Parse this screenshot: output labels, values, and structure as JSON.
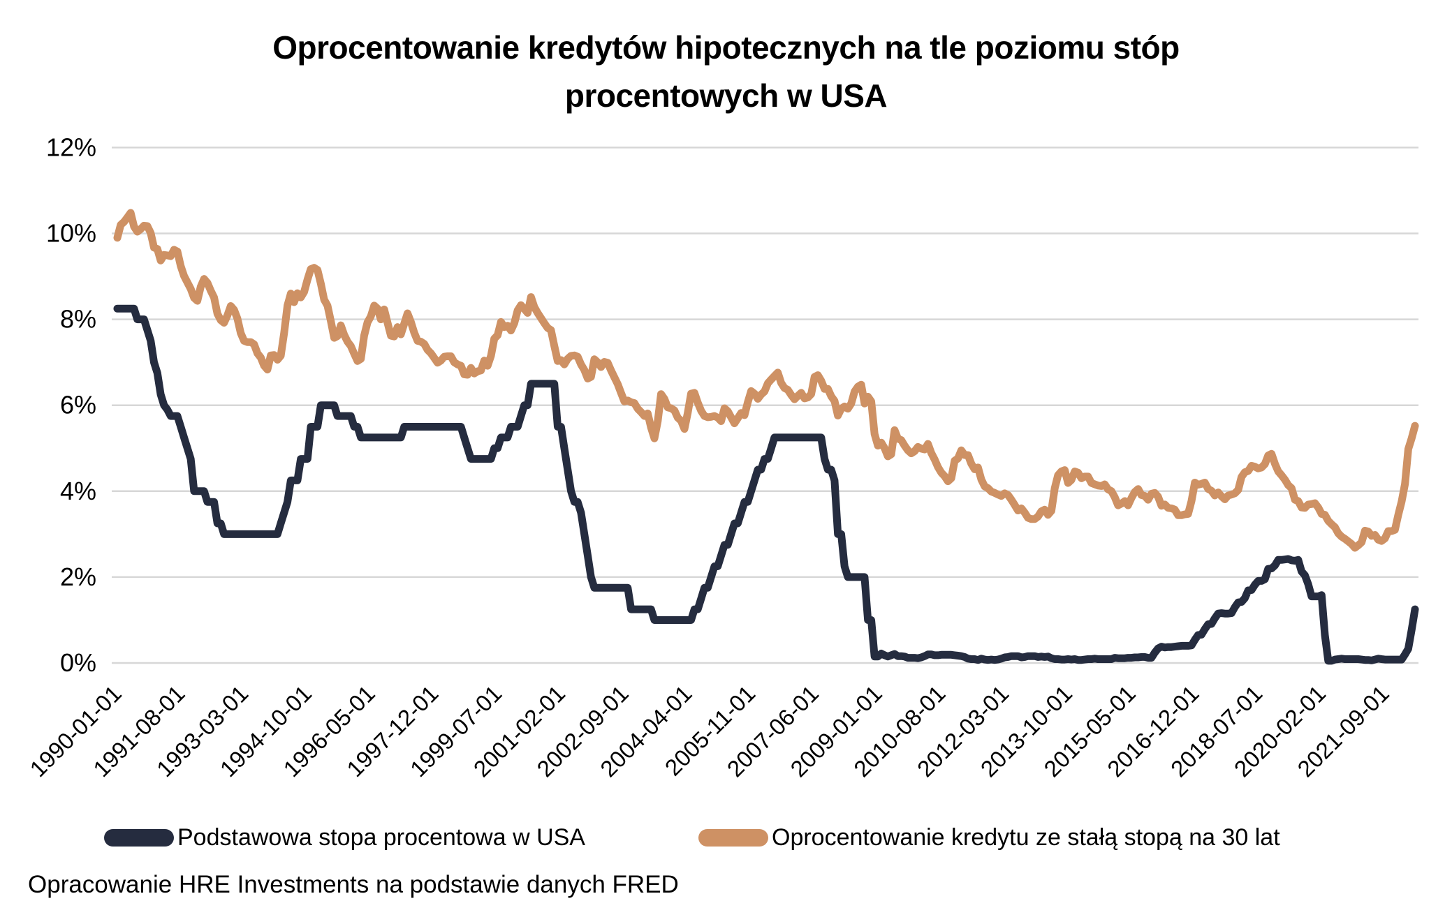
{
  "title": "Oprocentowanie kredytów hipotecznych na tle poziomu stóp procentowych w USA",
  "footer": "Opracowanie HRE Investments na podstawie danych FRED",
  "colors": {
    "base_rate_line": "#252C3F",
    "mortgage_rate_line": "#CE9164",
    "gridline": "#D7D7D7",
    "text": "#000000"
  },
  "chart_data": {
    "type": "line",
    "title": "Oprocentowanie kredytów hipotecznych na tle poziomu stóp procentowych w USA",
    "xlabel": "",
    "ylabel": "",
    "ylim": [
      0,
      12
    ],
    "y_ticks": [
      0,
      2,
      4,
      6,
      8,
      10,
      12
    ],
    "y_tick_suffix": "%",
    "grid": "horizontal",
    "legend_position": "bottom",
    "x_frequency": "monthly",
    "x_start": "1990-01-01",
    "x_end": "2022-06-01",
    "x_tick_interval_months": 19,
    "x_tick_labels": [
      "1990-01-01",
      "1991-08-01",
      "1993-03-01",
      "1994-10-01",
      "1996-05-01",
      "1997-12-01",
      "1999-07-01",
      "2001-02-01",
      "2002-09-01",
      "2004-04-01",
      "2005-11-01",
      "2007-06-01",
      "2009-01-01",
      "2010-08-01",
      "2012-03-01",
      "2013-10-01",
      "2015-05-01",
      "2016-12-01",
      "2018-07-01",
      "2020-02-01",
      "2021-09-01"
    ],
    "series": [
      {
        "name": "Podstawowa stopa procentowa w USA",
        "color": "#252C3F",
        "values": [
          8.25,
          8.25,
          8.25,
          8.25,
          8.25,
          8.25,
          8.0,
          8.0,
          8.0,
          7.75,
          7.5,
          7.0,
          6.75,
          6.25,
          6.0,
          5.9,
          5.75,
          5.75,
          5.75,
          5.5,
          5.25,
          5.0,
          4.75,
          4.0,
          4.0,
          4.0,
          4.0,
          3.75,
          3.75,
          3.75,
          3.25,
          3.25,
          3.0,
          3.0,
          3.0,
          3.0,
          3.0,
          3.0,
          3.0,
          3.0,
          3.0,
          3.0,
          3.0,
          3.0,
          3.0,
          3.0,
          3.0,
          3.0,
          3.0,
          3.25,
          3.5,
          3.75,
          4.25,
          4.25,
          4.25,
          4.75,
          4.75,
          4.75,
          5.5,
          5.5,
          5.5,
          6.0,
          6.0,
          6.0,
          6.0,
          6.0,
          5.75,
          5.75,
          5.75,
          5.75,
          5.75,
          5.5,
          5.5,
          5.25,
          5.25,
          5.25,
          5.25,
          5.25,
          5.25,
          5.25,
          5.25,
          5.25,
          5.25,
          5.25,
          5.25,
          5.25,
          5.5,
          5.5,
          5.5,
          5.5,
          5.5,
          5.5,
          5.5,
          5.5,
          5.5,
          5.5,
          5.5,
          5.5,
          5.5,
          5.5,
          5.5,
          5.5,
          5.5,
          5.5,
          5.25,
          5.0,
          4.75,
          4.75,
          4.75,
          4.75,
          4.75,
          4.75,
          4.75,
          5.0,
          5.0,
          5.25,
          5.25,
          5.25,
          5.5,
          5.5,
          5.5,
          5.75,
          6.0,
          6.0,
          6.5,
          6.5,
          6.5,
          6.5,
          6.5,
          6.5,
          6.5,
          6.5,
          5.5,
          5.5,
          5.0,
          4.5,
          4.0,
          3.75,
          3.75,
          3.5,
          3.0,
          2.5,
          2.0,
          1.75,
          1.75,
          1.75,
          1.75,
          1.75,
          1.75,
          1.75,
          1.75,
          1.75,
          1.75,
          1.75,
          1.25,
          1.25,
          1.25,
          1.25,
          1.25,
          1.25,
          1.25,
          1.0,
          1.0,
          1.0,
          1.0,
          1.0,
          1.0,
          1.0,
          1.0,
          1.0,
          1.0,
          1.0,
          1.0,
          1.25,
          1.25,
          1.5,
          1.75,
          1.75,
          2.0,
          2.25,
          2.25,
          2.5,
          2.75,
          2.75,
          3.0,
          3.25,
          3.25,
          3.5,
          3.75,
          3.75,
          4.0,
          4.25,
          4.5,
          4.5,
          4.75,
          4.75,
          5.0,
          5.25,
          5.25,
          5.25,
          5.25,
          5.25,
          5.25,
          5.25,
          5.25,
          5.25,
          5.25,
          5.25,
          5.25,
          5.25,
          5.25,
          5.25,
          4.75,
          4.5,
          4.5,
          4.25,
          3.0,
          3.0,
          2.25,
          2.0,
          2.0,
          2.0,
          2.0,
          2.0,
          2.0,
          1.0,
          1.0,
          0.15,
          0.15,
          0.22,
          0.18,
          0.15,
          0.18,
          0.21,
          0.16,
          0.16,
          0.15,
          0.12,
          0.12,
          0.12,
          0.11,
          0.13,
          0.16,
          0.2,
          0.2,
          0.18,
          0.18,
          0.19,
          0.19,
          0.19,
          0.19,
          0.18,
          0.17,
          0.16,
          0.14,
          0.1,
          0.09,
          0.09,
          0.07,
          0.1,
          0.08,
          0.07,
          0.08,
          0.07,
          0.08,
          0.1,
          0.13,
          0.14,
          0.16,
          0.16,
          0.16,
          0.13,
          0.14,
          0.16,
          0.16,
          0.16,
          0.14,
          0.15,
          0.14,
          0.15,
          0.11,
          0.09,
          0.09,
          0.08,
          0.08,
          0.09,
          0.08,
          0.09,
          0.07,
          0.07,
          0.08,
          0.09,
          0.09,
          0.1,
          0.09,
          0.09,
          0.09,
          0.09,
          0.09,
          0.12,
          0.11,
          0.11,
          0.11,
          0.12,
          0.12,
          0.13,
          0.13,
          0.14,
          0.14,
          0.12,
          0.12,
          0.24,
          0.34,
          0.38,
          0.36,
          0.37,
          0.37,
          0.38,
          0.39,
          0.4,
          0.4,
          0.4,
          0.41,
          0.54,
          0.65,
          0.66,
          0.79,
          0.9,
          0.91,
          1.04,
          1.15,
          1.16,
          1.15,
          1.15,
          1.16,
          1.3,
          1.41,
          1.42,
          1.51,
          1.69,
          1.7,
          1.82,
          1.91,
          1.91,
          1.95,
          2.19,
          2.2,
          2.27,
          2.4,
          2.4,
          2.41,
          2.42,
          2.39,
          2.38,
          2.4,
          2.13,
          2.04,
          1.83,
          1.55,
          1.55,
          1.55,
          1.58,
          0.65,
          0.05,
          0.05,
          0.08,
          0.09,
          0.1,
          0.09,
          0.09,
          0.09,
          0.09,
          0.09,
          0.08,
          0.07,
          0.07,
          0.06,
          0.08,
          0.1,
          0.09,
          0.08,
          0.08,
          0.08,
          0.08,
          0.08,
          0.08,
          0.2,
          0.33,
          0.77,
          1.25
        ]
      },
      {
        "name": "Oprocentowanie kredytu ze stałą stopą na 30 lat",
        "color": "#CE9164",
        "values": [
          9.9,
          10.2,
          10.27,
          10.37,
          10.48,
          10.16,
          10.04,
          10.1,
          10.18,
          10.17,
          10.01,
          9.67,
          9.64,
          9.37,
          9.5,
          9.49,
          9.47,
          9.62,
          9.58,
          9.24,
          9.01,
          8.86,
          8.71,
          8.5,
          8.43,
          8.76,
          8.94,
          8.85,
          8.67,
          8.51,
          8.13,
          7.98,
          7.92,
          8.09,
          8.31,
          8.22,
          8.02,
          7.68,
          7.5,
          7.47,
          7.47,
          7.42,
          7.21,
          7.11,
          6.92,
          6.83,
          7.16,
          7.17,
          7.06,
          7.15,
          7.68,
          8.32,
          8.6,
          8.4,
          8.61,
          8.51,
          8.64,
          8.93,
          9.17,
          9.2,
          9.15,
          8.83,
          8.46,
          8.32,
          7.96,
          7.57,
          7.61,
          7.86,
          7.64,
          7.48,
          7.38,
          7.2,
          7.03,
          7.08,
          7.62,
          7.93,
          8.07,
          8.32,
          8.25,
          8.0,
          8.23,
          7.92,
          7.62,
          7.6,
          7.82,
          7.65,
          7.9,
          8.14,
          7.94,
          7.69,
          7.5,
          7.48,
          7.43,
          7.29,
          7.21,
          7.1,
          6.99,
          7.04,
          7.13,
          7.14,
          7.14,
          7.0,
          6.95,
          6.92,
          6.72,
          6.71,
          6.87,
          6.74,
          6.79,
          6.81,
          7.04,
          6.92,
          7.15,
          7.55,
          7.63,
          7.94,
          7.82,
          7.85,
          7.74,
          7.91,
          8.21,
          8.33,
          8.24,
          8.15,
          8.52,
          8.29,
          8.15,
          8.03,
          7.91,
          7.8,
          7.75,
          7.38,
          7.03,
          7.05,
          6.95,
          7.08,
          7.15,
          7.16,
          7.13,
          6.95,
          6.82,
          6.62,
          6.66,
          7.07,
          7.0,
          6.89,
          7.01,
          6.99,
          6.81,
          6.65,
          6.49,
          6.29,
          6.09,
          6.11,
          6.07,
          6.05,
          5.92,
          5.84,
          5.75,
          5.81,
          5.48,
          5.23,
          5.63,
          6.26,
          6.15,
          5.95,
          5.93,
          5.88,
          5.71,
          5.64,
          5.45,
          5.83,
          6.27,
          6.29,
          6.06,
          5.87,
          5.75,
          5.72,
          5.73,
          5.75,
          5.71,
          5.63,
          5.93,
          5.86,
          5.72,
          5.58,
          5.7,
          5.82,
          5.77,
          6.07,
          6.33,
          6.27,
          6.15,
          6.25,
          6.32,
          6.51,
          6.6,
          6.68,
          6.76,
          6.52,
          6.4,
          6.36,
          6.24,
          6.14,
          6.22,
          6.29,
          6.16,
          6.18,
          6.26,
          6.66,
          6.7,
          6.57,
          6.38,
          6.38,
          6.21,
          6.1,
          5.76,
          5.92,
          5.97,
          5.92,
          6.04,
          6.32,
          6.43,
          6.48,
          6.04,
          6.2,
          6.09,
          5.33,
          5.06,
          5.13,
          5.0,
          4.81,
          4.86,
          5.42,
          5.22,
          5.19,
          5.06,
          4.95,
          4.88,
          4.93,
          5.03,
          4.99,
          4.97,
          5.1,
          4.89,
          4.74,
          4.56,
          4.43,
          4.35,
          4.23,
          4.3,
          4.71,
          4.76,
          4.95,
          4.84,
          4.84,
          4.64,
          4.51,
          4.55,
          4.27,
          4.11,
          4.07,
          3.99,
          3.96,
          3.92,
          3.89,
          3.95,
          3.91,
          3.8,
          3.68,
          3.55,
          3.6,
          3.5,
          3.38,
          3.35,
          3.35,
          3.41,
          3.53,
          3.57,
          3.45,
          3.54,
          4.07,
          4.37,
          4.46,
          4.49,
          4.19,
          4.26,
          4.46,
          4.43,
          4.3,
          4.34,
          4.34,
          4.19,
          4.16,
          4.13,
          4.12,
          4.16,
          4.04,
          4.0,
          3.86,
          3.67,
          3.71,
          3.77,
          3.67,
          3.84,
          3.98,
          4.05,
          3.91,
          3.89,
          3.8,
          3.94,
          3.96,
          3.87,
          3.66,
          3.69,
          3.61,
          3.6,
          3.57,
          3.44,
          3.44,
          3.46,
          3.47,
          3.77,
          4.2,
          4.15,
          4.17,
          4.2,
          4.05,
          4.01,
          3.9,
          3.97,
          3.88,
          3.81,
          3.9,
          3.92,
          3.95,
          4.03,
          4.33,
          4.44,
          4.47,
          4.59,
          4.57,
          4.53,
          4.55,
          4.63,
          4.83,
          4.87,
          4.64,
          4.46,
          4.37,
          4.27,
          4.14,
          4.07,
          3.8,
          3.77,
          3.62,
          3.61,
          3.69,
          3.7,
          3.72,
          3.62,
          3.47,
          3.45,
          3.31,
          3.23,
          3.16,
          3.02,
          2.94,
          2.89,
          2.83,
          2.77,
          2.68,
          2.74,
          2.81,
          3.08,
          3.06,
          2.96,
          2.98,
          2.87,
          2.84,
          2.9,
          3.07,
          3.07,
          3.1,
          3.45,
          3.76,
          4.17,
          4.98,
          5.23,
          5.52
        ]
      }
    ]
  }
}
